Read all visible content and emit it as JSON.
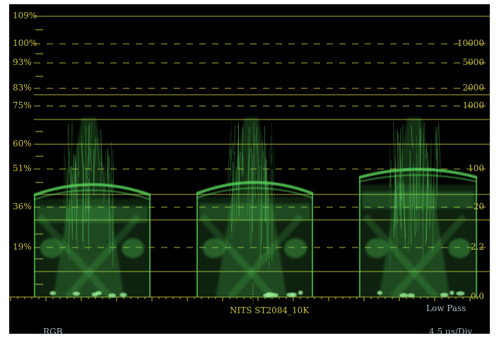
{
  "colors": {
    "graticule": "#c8c23a",
    "status_text": "#a9b8c2",
    "waveform": "#59d45c",
    "background": "#000000"
  },
  "left_scale": [
    "109%",
    "100%",
    "93%",
    "83%",
    "75%",
    "60%",
    "51%",
    "36%",
    "19%"
  ],
  "right_scale": [
    "10000",
    "5000",
    "2000",
    "1000",
    "100",
    "20",
    "2.2",
    "0.0"
  ],
  "bottom": {
    "curve_label": "NITS  ST2084_10K",
    "filter_label": "Low Pass"
  },
  "status": {
    "mode": "RGB",
    "timebase": "4.5 μs/Div"
  }
}
